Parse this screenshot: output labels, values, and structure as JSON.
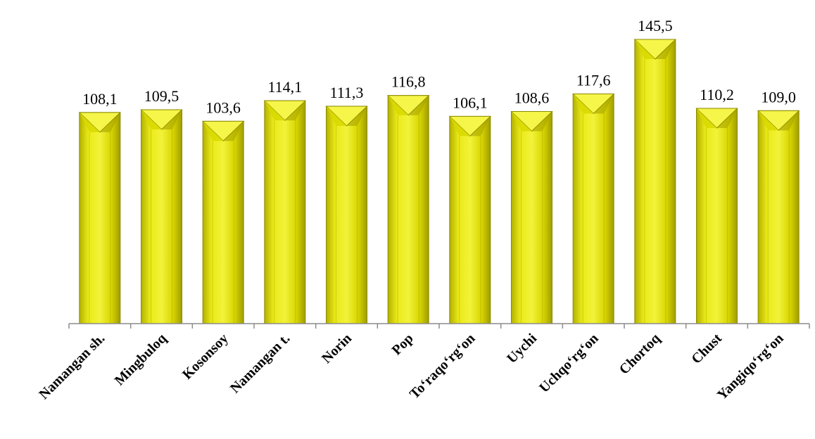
{
  "chart_data": {
    "type": "bar",
    "title": "",
    "xlabel": "",
    "ylabel": "",
    "categories": [
      "Namangan sh.",
      "Mingbuloq",
      "Kosonsoy",
      "Namangan t.",
      "Norin",
      "Pop",
      "To‘raqo‘rg‘on",
      "Uychi",
      "Uchqo‘rg‘on",
      "Chortoq",
      "Chust",
      "Yangiqo‘rg‘on"
    ],
    "values": [
      108.1,
      109.5,
      103.6,
      114.1,
      111.3,
      116.8,
      106.1,
      108.6,
      117.6,
      145.5,
      110.2,
      109.0
    ],
    "value_labels": [
      "108,1",
      "109,5",
      "103,6",
      "114,1",
      "111,3",
      "116,8",
      "106,1",
      "108,6",
      "117,6",
      "145,5",
      "110,2",
      "109,0"
    ],
    "ylim": [
      0,
      145.5
    ],
    "grid": false,
    "legend": "none",
    "colors": {
      "bar_face": "#e6e600",
      "bar_light": "#f5f54a",
      "bar_dark": "#a8a400",
      "bar_top": "#d8d800",
      "bar_edge": "#8a8a00",
      "axis": "#8c8c8c"
    }
  }
}
